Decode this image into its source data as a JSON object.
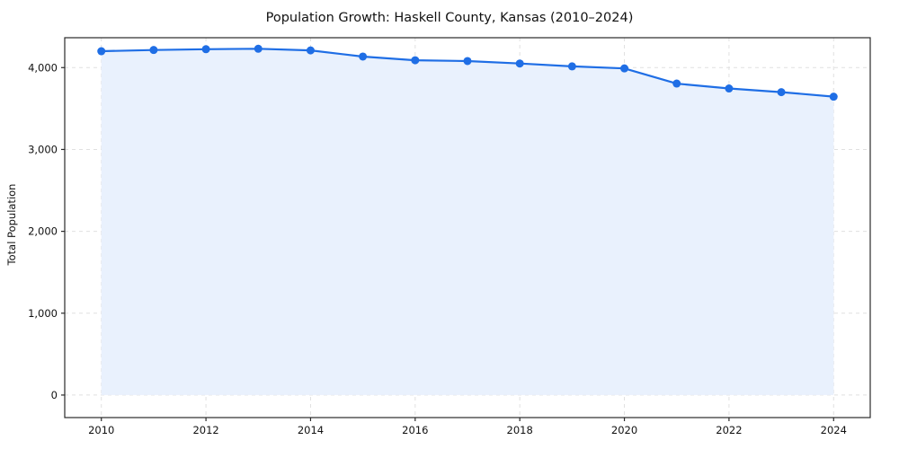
{
  "chart_data": {
    "type": "area",
    "title": "Population Growth: Haskell County, Kansas (2010–2024)",
    "xlabel": "",
    "ylabel": "Total Population",
    "x": [
      2010,
      2011,
      2012,
      2013,
      2014,
      2015,
      2016,
      2017,
      2018,
      2019,
      2020,
      2021,
      2022,
      2023,
      2024
    ],
    "values": [
      4200,
      4215,
      4225,
      4230,
      4210,
      4135,
      4090,
      4080,
      4050,
      4015,
      3990,
      3805,
      3745,
      3700,
      3645
    ],
    "xticks": [
      2010,
      2012,
      2014,
      2016,
      2018,
      2020,
      2022,
      2024
    ],
    "yticks": [
      0,
      1000,
      2000,
      3000,
      4000
    ],
    "xlim": [
      2009.3,
      2024.7
    ],
    "ylim": [
      -275,
      4365
    ],
    "grid": true,
    "legend": "none",
    "line_color": "#1f6ee5",
    "marker_color": "#1f6ee5",
    "fill_color": "#e9f1fd",
    "grid_color": "#e0e0e0",
    "frame_color": "#2a2a2a"
  }
}
